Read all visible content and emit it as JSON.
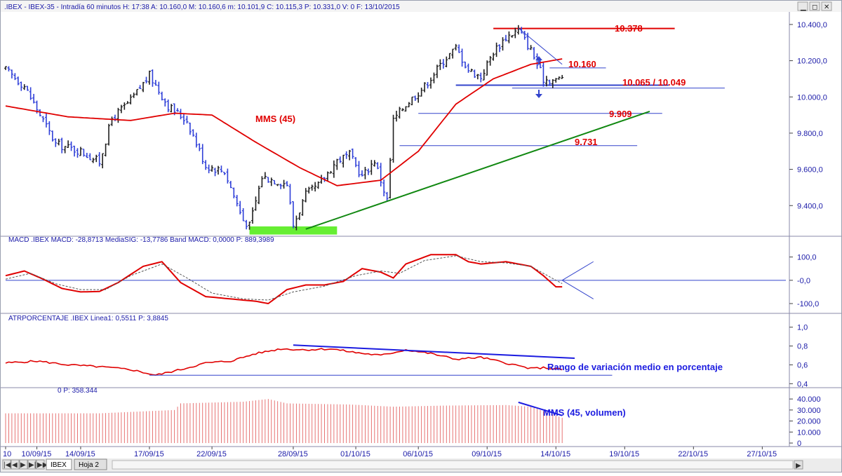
{
  "window": {
    "title": ".IBEX - IBEX-35 - Intradía 60 minutos  H: 17:38  A: 10.160,0  M: 10.160,6  m: 10.101,9  C: 10.115,3  P: 10.331,0  V: 0  F: 13/10/2015",
    "controls": {
      "minimize": "▁",
      "maximize": "◻",
      "close": "✕"
    }
  },
  "tabs": {
    "first": "IBEX",
    "second": "Hoja 2",
    "nav": [
      "|◀",
      "◀",
      "▶",
      "▶|",
      "▶▶"
    ]
  },
  "colors": {
    "bull_bar": "#1f1f1f",
    "bear_bar": "#2f3fd8",
    "mma": "#e00000",
    "support_trend": "#118811",
    "level_line": "#3344cc",
    "annotation_red": "#e00000",
    "annotation_blue": "#1c1ce0",
    "highlight_box": "#66ee33",
    "volume": "#e46464",
    "axis_text": "#1a1aa8"
  },
  "chart_data": [
    {
      "type": "candlestick",
      "panel": "price",
      "title": ".IBEX - IBEX-35 - Intradía 60 minutos",
      "ylim": [
        9250,
        10450
      ],
      "yticks": [
        9400,
        9600,
        9800,
        10000,
        10200,
        10400
      ],
      "ytick_labels": [
        "9.400,0",
        "9.600,0",
        "9.800,0",
        "10.000,0",
        "10.200,0",
        "10.400,0"
      ],
      "xrange": [
        0,
        125
      ],
      "session_anchors": [
        {
          "bar": 0,
          "close": 10150
        },
        {
          "bar": 3,
          "close": 10060
        },
        {
          "bar": 6,
          "close": 9870
        },
        {
          "bar": 8,
          "close": 9740
        },
        {
          "bar": 12,
          "close": 9700
        },
        {
          "bar": 15,
          "close": 9640
        },
        {
          "bar": 17,
          "close": 9880
        },
        {
          "bar": 20,
          "close": 9980
        },
        {
          "bar": 23,
          "close": 10120
        },
        {
          "bar": 26,
          "close": 9950
        },
        {
          "bar": 29,
          "close": 9870
        },
        {
          "bar": 32,
          "close": 9620
        },
        {
          "bar": 35,
          "close": 9590
        },
        {
          "bar": 38,
          "close": 9320
        },
        {
          "bar": 39,
          "close": 9290
        },
        {
          "bar": 41,
          "close": 9560
        },
        {
          "bar": 45,
          "close": 9520
        },
        {
          "bar": 46,
          "close": 9290
        },
        {
          "bar": 48,
          "close": 9460
        },
        {
          "bar": 50,
          "close": 9510
        },
        {
          "bar": 53,
          "close": 9650
        },
        {
          "bar": 55,
          "close": 9680
        },
        {
          "bar": 57,
          "close": 9560
        },
        {
          "bar": 59,
          "close": 9650
        },
        {
          "bar": 61,
          "close": 9430
        },
        {
          "bar": 62,
          "close": 9870
        },
        {
          "bar": 64,
          "close": 9960
        },
        {
          "bar": 67,
          "close": 10060
        },
        {
          "bar": 70,
          "close": 10200
        },
        {
          "bar": 72,
          "close": 10270
        },
        {
          "bar": 74,
          "close": 10150
        },
        {
          "bar": 76,
          "close": 10110
        },
        {
          "bar": 78,
          "close": 10250
        },
        {
          "bar": 80,
          "close": 10330
        },
        {
          "bar": 82,
          "close": 10370
        },
        {
          "bar": 84,
          "close": 10260
        },
        {
          "bar": 86,
          "close": 10100
        },
        {
          "bar": 88,
          "close": 10090
        },
        {
          "bar": 89,
          "close": 10115
        }
      ],
      "mms_anchors": [
        {
          "bar": 0,
          "value": 9950
        },
        {
          "bar": 10,
          "value": 9890
        },
        {
          "bar": 20,
          "value": 9870
        },
        {
          "bar": 27,
          "value": 9910
        },
        {
          "bar": 33,
          "value": 9900
        },
        {
          "bar": 40,
          "value": 9750
        },
        {
          "bar": 47,
          "value": 9610
        },
        {
          "bar": 53,
          "value": 9510
        },
        {
          "bar": 60,
          "value": 9540
        },
        {
          "bar": 66,
          "value": 9700
        },
        {
          "bar": 72,
          "value": 9960
        },
        {
          "bar": 78,
          "value": 10100
        },
        {
          "bar": 84,
          "value": 10180
        },
        {
          "bar": 89,
          "value": 10210
        }
      ],
      "series_label": "MMS (45)",
      "levels": [
        {
          "label": "10.378",
          "value": 10378,
          "from_bar": 78,
          "to_bar": 107,
          "color": "red"
        },
        {
          "label": "10.160",
          "value": 10160,
          "from_bar": 87,
          "to_bar": 96,
          "color": "blue"
        },
        {
          "label": "10.065 / 10.049",
          "value": 10065,
          "from_bar": 72,
          "to_bar": 106,
          "color": "blue"
        },
        {
          "label": "",
          "value": 10049,
          "from_bar": 81,
          "to_bar": 115,
          "color": "blue"
        },
        {
          "label": "9.909",
          "value": 9909,
          "from_bar": 66,
          "to_bar": 105,
          "color": "blue"
        },
        {
          "label": "9.731",
          "value": 9731,
          "from_bar": 63,
          "to_bar": 101,
          "color": "blue"
        }
      ],
      "trendline": {
        "from": {
          "bar": 48,
          "value": 9270
        },
        "to": {
          "bar": 103,
          "value": 9920
        }
      },
      "resistance_trend": {
        "from": {
          "bar": 82,
          "value": 10380
        },
        "to": {
          "bar": 89,
          "value": 10180
        }
      },
      "support_box": {
        "from_bar": 39,
        "to_bar": 53,
        "value_top": 9285,
        "value_bottom": 9240
      }
    },
    {
      "type": "line",
      "panel": "macd",
      "title": "MACD .IBEX MACD: -28,8713  MediaSIG: -13,7786  Band MACD: 0,0000  P: 889,3989",
      "ylim": [
        -130,
        150
      ],
      "yticks": [
        -100,
        0,
        100
      ],
      "ytick_labels": [
        "-100,0",
        "-0,0",
        "100,0"
      ],
      "series": [
        {
          "name": "MACD",
          "anchors": [
            [
              0,
              20
            ],
            [
              3,
              40
            ],
            [
              6,
              5
            ],
            [
              9,
              -35
            ],
            [
              12,
              -50
            ],
            [
              15,
              -48
            ],
            [
              18,
              -10
            ],
            [
              22,
              60
            ],
            [
              25,
              80
            ],
            [
              28,
              -10
            ],
            [
              32,
              -70
            ],
            [
              36,
              -80
            ],
            [
              40,
              -90
            ],
            [
              42,
              -100
            ],
            [
              45,
              -40
            ],
            [
              48,
              -20
            ],
            [
              51,
              -20
            ],
            [
              54,
              -5
            ],
            [
              57,
              50
            ],
            [
              60,
              35
            ],
            [
              62,
              10
            ],
            [
              64,
              70
            ],
            [
              68,
              110
            ],
            [
              72,
              110
            ],
            [
              74,
              80
            ],
            [
              76,
              70
            ],
            [
              80,
              80
            ],
            [
              84,
              60
            ],
            [
              86,
              20
            ],
            [
              88,
              -28
            ],
            [
              89,
              -28
            ]
          ]
        },
        {
          "name": "MediaSIG",
          "anchors": [
            [
              0,
              5
            ],
            [
              4,
              30
            ],
            [
              8,
              -15
            ],
            [
              12,
              -40
            ],
            [
              16,
              -40
            ],
            [
              20,
              20
            ],
            [
              25,
              70
            ],
            [
              29,
              10
            ],
            [
              33,
              -55
            ],
            [
              38,
              -80
            ],
            [
              42,
              -85
            ],
            [
              46,
              -50
            ],
            [
              51,
              -25
            ],
            [
              56,
              20
            ],
            [
              60,
              40
            ],
            [
              63,
              30
            ],
            [
              67,
              85
            ],
            [
              72,
              105
            ],
            [
              76,
              80
            ],
            [
              80,
              75
            ],
            [
              84,
              60
            ],
            [
              88,
              0
            ],
            [
              89,
              -14
            ]
          ]
        }
      ],
      "band_marks": {
        "from_bar": 89,
        "top": 80,
        "bottom": -80,
        "to_bar": 94
      }
    },
    {
      "type": "line",
      "panel": "atr",
      "title": "ATRPORCENTAJE .IBEX Linea1: 0,5511  P: 3,8845",
      "ylim": [
        0.38,
        1.05
      ],
      "yticks": [
        0.4,
        0.6,
        0.8,
        1.0
      ],
      "ytick_labels": [
        "0,4",
        "0,6",
        "0,8",
        "1,0"
      ],
      "series": [
        {
          "name": "ATR %",
          "anchors": [
            [
              0,
              0.62
            ],
            [
              5,
              0.64
            ],
            [
              10,
              0.6
            ],
            [
              15,
              0.58
            ],
            [
              20,
              0.55
            ],
            [
              24,
              0.49
            ],
            [
              28,
              0.55
            ],
            [
              32,
              0.62
            ],
            [
              36,
              0.64
            ],
            [
              40,
              0.72
            ],
            [
              44,
              0.77
            ],
            [
              48,
              0.76
            ],
            [
              52,
              0.77
            ],
            [
              56,
              0.73
            ],
            [
              60,
              0.7
            ],
            [
              64,
              0.76
            ],
            [
              68,
              0.72
            ],
            [
              72,
              0.66
            ],
            [
              76,
              0.68
            ],
            [
              80,
              0.62
            ],
            [
              84,
              0.56
            ],
            [
              86,
              0.57
            ],
            [
              89,
              0.55
            ]
          ]
        }
      ],
      "trend_upper": {
        "from": {
          "bar": 46,
          "value": 0.81
        },
        "to": {
          "bar": 91,
          "value": 0.67
        }
      },
      "baseline": {
        "from": {
          "bar": 23,
          "value": 0.49
        },
        "to": {
          "bar": 97,
          "value": 0.49
        }
      },
      "annotation": "Rango de variación medio en porcentaje"
    },
    {
      "type": "bar",
      "panel": "volume",
      "title": "0  P: 358.344",
      "ylim": [
        0,
        42000
      ],
      "yticks": [
        0,
        10000,
        20000,
        30000,
        40000
      ],
      "ytick_labels": [
        "0",
        "10.000",
        "20.000",
        "30.000",
        "40.000"
      ],
      "series": [
        {
          "name": "MMS (45, volumen)",
          "anchors": [
            [
              0,
              27000
            ],
            [
              15,
              27000
            ],
            [
              27,
              30000
            ],
            [
              28,
              36000
            ],
            [
              38,
              37500
            ],
            [
              42,
              40000
            ],
            [
              45,
              36000
            ],
            [
              55,
              35000
            ],
            [
              62,
              33000
            ],
            [
              70,
              34000
            ],
            [
              80,
              34500
            ],
            [
              84,
              33000
            ],
            [
              89,
              23000
            ]
          ]
        }
      ],
      "trend": {
        "from": {
          "bar": 82,
          "value": 37000
        },
        "to": {
          "bar": 89,
          "value": 25000
        }
      },
      "annotation": "MMS (45, volumen)"
    }
  ],
  "x_axis": {
    "tick_labels": [
      "10",
      "10/09/15",
      "14/09/15",
      "17/09/15",
      "22/09/15",
      "28/09/15",
      "01/10/15",
      "06/10/15",
      "09/10/15",
      "14/10/15",
      "19/10/15",
      "22/10/15",
      "27/10/15"
    ],
    "tick_bars": [
      0,
      5,
      12,
      23,
      33,
      46,
      56,
      66,
      77,
      88,
      99,
      110,
      121
    ]
  }
}
